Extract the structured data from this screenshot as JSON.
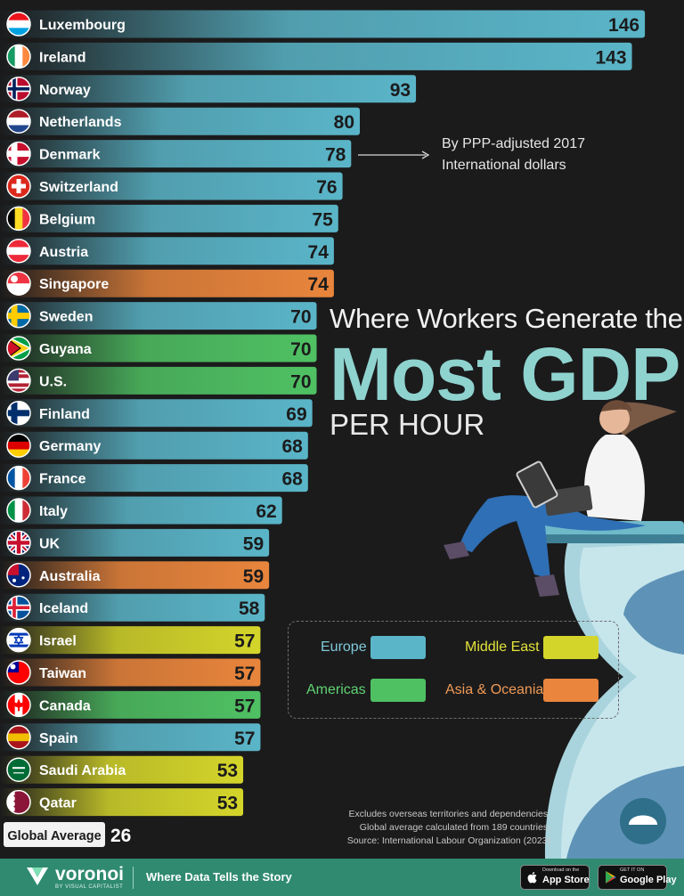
{
  "title": {
    "line1": "Where Workers Generate the",
    "line2": "Most GDP",
    "line3": "PER HOUR"
  },
  "unit_note": "By PPP-adjusted 2017\nInternational dollars",
  "colors": {
    "Europe": "#5ab5c8",
    "Americas": "#4fc163",
    "Middle East": "#d4d52a",
    "Asia & Oceania": "#e9853c",
    "background": "#1b1b1c",
    "footer": "#2f8a6f",
    "title_accent": "#8fd3cf"
  },
  "legend": {
    "europe": "Europe",
    "americas": "Americas",
    "middle_east": "Middle East",
    "asia_oceania": "Asia & Oceania"
  },
  "chart_data": {
    "type": "bar",
    "orientation": "horizontal",
    "categories": [
      "Luxembourg",
      "Ireland",
      "Norway",
      "Netherlands",
      "Denmark",
      "Switzerland",
      "Belgium",
      "Austria",
      "Singapore",
      "Sweden",
      "Guyana",
      "U.S.",
      "Finland",
      "Germany",
      "France",
      "Italy",
      "UK",
      "Australia",
      "Iceland",
      "Israel",
      "Taiwan",
      "Canada",
      "Spain",
      "Saudi Arabia",
      "Qatar"
    ],
    "values": [
      146,
      143,
      93,
      80,
      78,
      76,
      75,
      74,
      74,
      70,
      70,
      70,
      69,
      68,
      68,
      62,
      59,
      59,
      58,
      57,
      57,
      57,
      57,
      53,
      53
    ],
    "regions": [
      "Europe",
      "Europe",
      "Europe",
      "Europe",
      "Europe",
      "Europe",
      "Europe",
      "Europe",
      "Asia & Oceania",
      "Europe",
      "Americas",
      "Americas",
      "Europe",
      "Europe",
      "Europe",
      "Europe",
      "Europe",
      "Asia & Oceania",
      "Europe",
      "Middle East",
      "Asia & Oceania",
      "Americas",
      "Europe",
      "Middle East",
      "Middle East"
    ],
    "flags": [
      "luxembourg-flag-icon",
      "ireland-flag-icon",
      "norway-flag-icon",
      "netherlands-flag-icon",
      "denmark-flag-icon",
      "switzerland-flag-icon",
      "belgium-flag-icon",
      "austria-flag-icon",
      "singapore-flag-icon",
      "sweden-flag-icon",
      "guyana-flag-icon",
      "us-flag-icon",
      "finland-flag-icon",
      "germany-flag-icon",
      "france-flag-icon",
      "italy-flag-icon",
      "uk-flag-icon",
      "australia-flag-icon",
      "iceland-flag-icon",
      "israel-flag-icon",
      "taiwan-flag-icon",
      "canada-flag-icon",
      "spain-flag-icon",
      "saudi-arabia-flag-icon",
      "qatar-flag-icon"
    ],
    "global_average": {
      "label": "Global Average",
      "value": 26
    }
  },
  "notes": [
    "Excludes overseas territories and dependencies.",
    "Global average calculated from 189 countries.",
    "Source: International Labour Organization (2023)"
  ],
  "footer": {
    "brand": "voronoi",
    "brand_sub": "BY VISUAL CAPITALIST",
    "tagline": "Where Data Tells the Story",
    "app_store_top": "Download on the",
    "app_store": "App Store",
    "google_play_top": "GET IT ON",
    "google_play": "Google Play"
  }
}
